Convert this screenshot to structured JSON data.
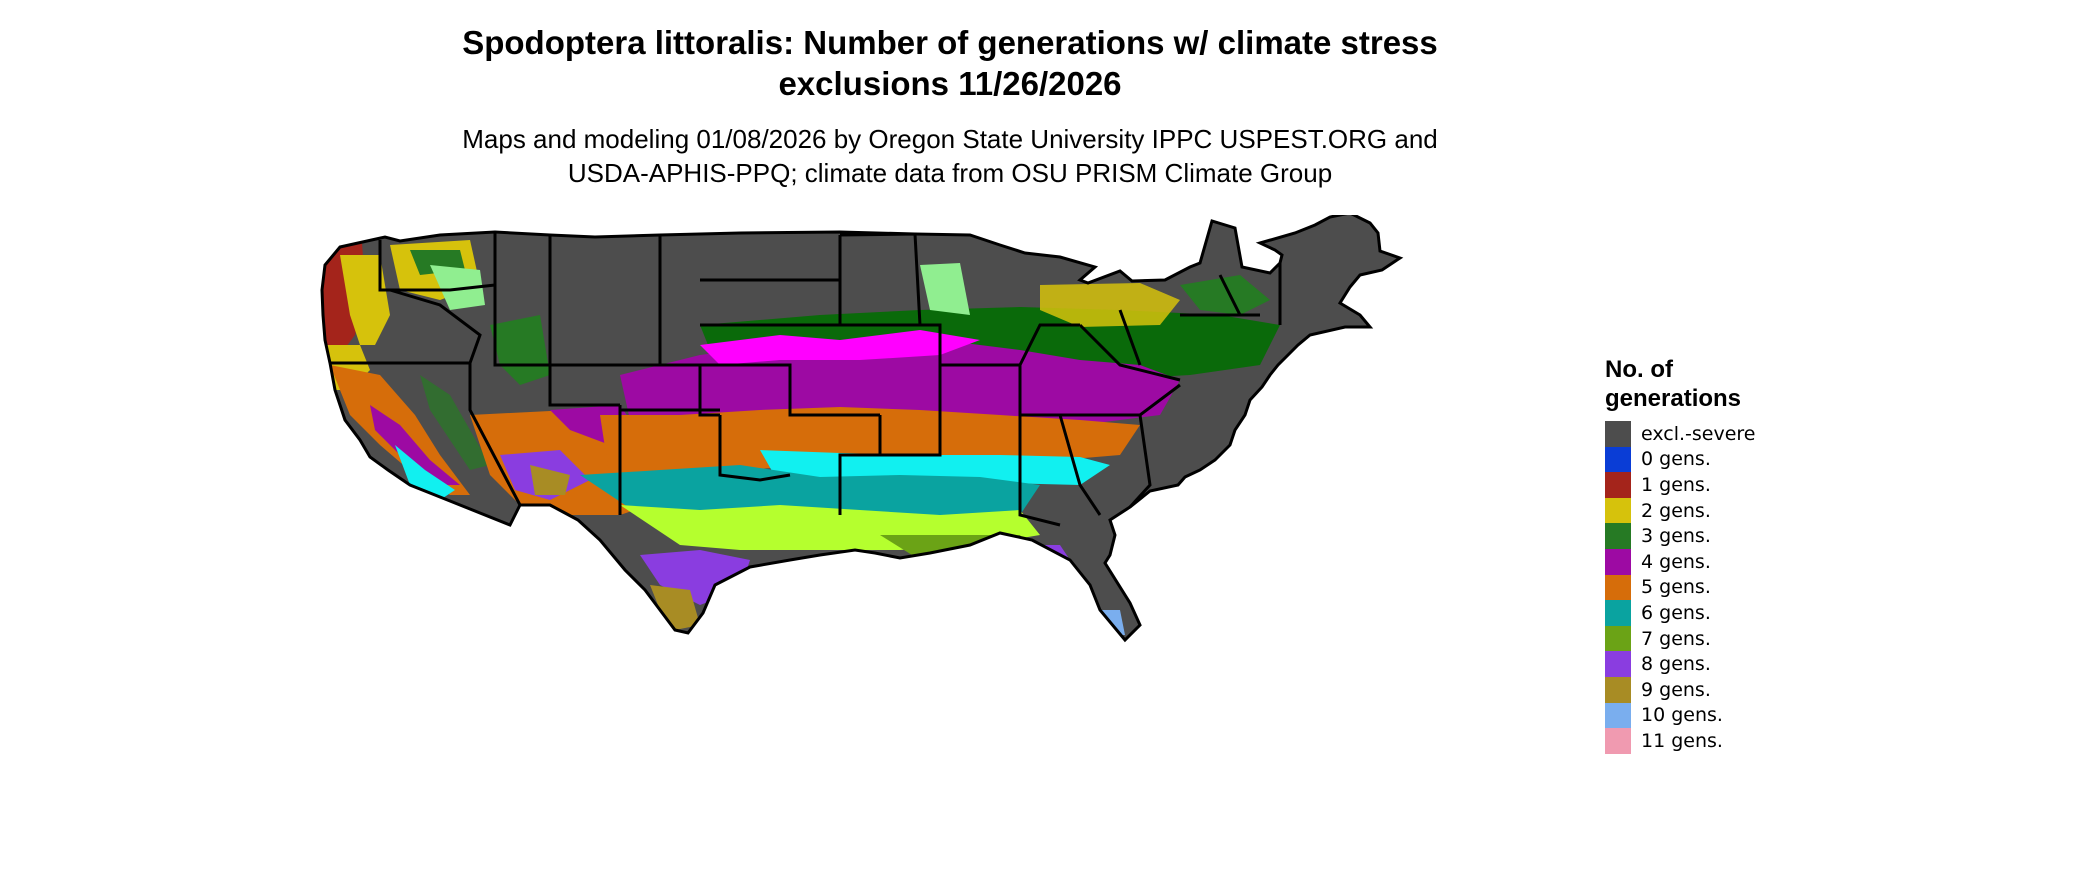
{
  "title": {
    "line1": "Spodoptera littoralis: Number of generations w/ climate stress",
    "line2": "exclusions 11/26/2026"
  },
  "subtitle": {
    "line1": "Maps and modeling 01/08/2026 by Oregon State University IPPC USPEST.ORG and",
    "line2": "USDA-APHIS-PPQ; climate data from OSU PRISM Climate Group"
  },
  "legend": {
    "title_line1": "No. of",
    "title_line2": "generations",
    "items": [
      {
        "label": "excl.-severe",
        "color": "#4d4d4d"
      },
      {
        "label": "0 gens.",
        "color": "#0a3dd6"
      },
      {
        "label": "1 gens.",
        "color": "#a4241b"
      },
      {
        "label": "2 gens.",
        "color": "#d6c20c"
      },
      {
        "label": "3 gens.",
        "color": "#267a24"
      },
      {
        "label": "4 gens.",
        "color": "#9d0aa3"
      },
      {
        "label": "5 gens.",
        "color": "#d66d0a"
      },
      {
        "label": "6 gens.",
        "color": "#0aa3a0"
      },
      {
        "label": "7 gens.",
        "color": "#6ba316"
      },
      {
        "label": "8 gens.",
        "color": "#8a3de0"
      },
      {
        "label": "9 gens.",
        "color": "#a88c24"
      },
      {
        "label": "10 gens.",
        "color": "#7aaeee"
      },
      {
        "label": "11 gens.",
        "color": "#f09ab0"
      }
    ]
  },
  "map": {
    "region": "Contiguous United States",
    "extra_colors": {
      "magenta": "#ff00ff",
      "bright_green": "#b5ff2e",
      "cyan": "#11f0f0",
      "dark_green": "#0a6a0a",
      "light_green": "#90ee90",
      "outline": "#000000"
    }
  }
}
